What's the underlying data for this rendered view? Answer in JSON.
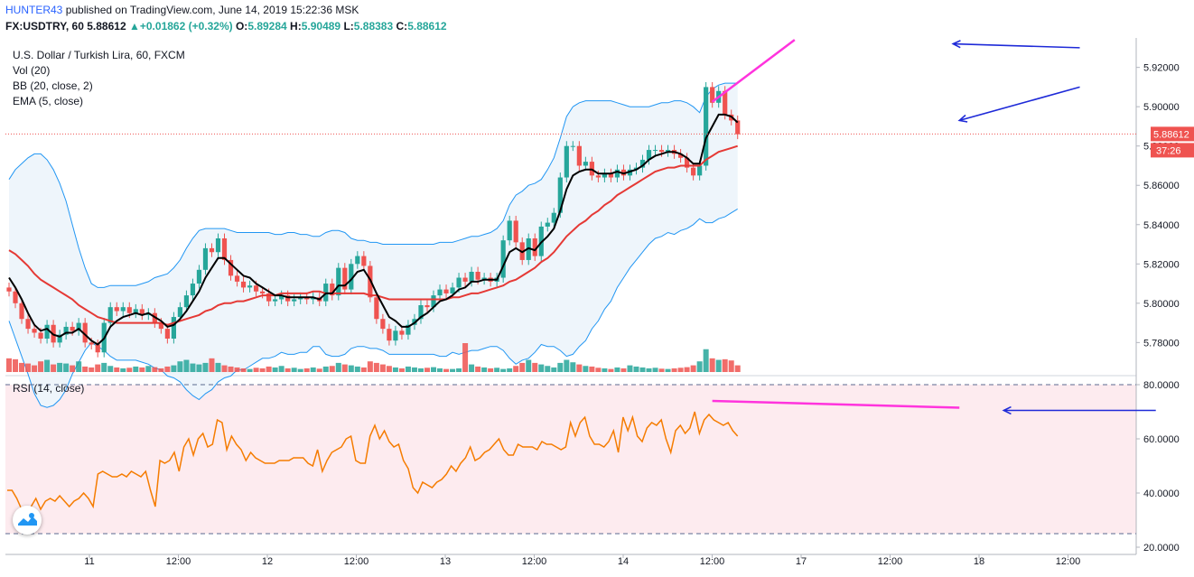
{
  "header": {
    "author": "HUNTER43",
    "published_text": "published on TradingView.com, June 14, 2019 15:22:36 MSK",
    "symbol": "FX:USDTRY, 60",
    "last": "5.88612",
    "change": "+0.01862 (+0.32%)",
    "o_label": "O:",
    "o_value": "5.89284",
    "h_label": "H:",
    "h_value": "5.90489",
    "l_label": "L:",
    "l_value": "5.88383",
    "c_label": "C:",
    "c_value": "5.88612"
  },
  "legend": {
    "title": "U.S. Dollar / Turkish Lira, 60, FXCM",
    "vol": "Vol (20)",
    "bb": "BB (20, close, 2)",
    "ema": "EMA (5, close)",
    "rsi": "RSI (14, close)"
  },
  "colors": {
    "up": "#26a69a",
    "down": "#ef5350",
    "ema": "#000000",
    "basis": "#e53935",
    "bands": "#2196f3",
    "rsi": "#f57c00",
    "trend": "#ff33dd",
    "arrow": "#1e2ad8",
    "rsi_fill": "#fdebef",
    "bb_fill": "#eef5fb"
  },
  "chart_data": [
    {
      "type": "candlestick",
      "title": "U.S. Dollar / Turkish Lira, 60, FXCM",
      "ylim": [
        5.765,
        5.935
      ],
      "yticks": [
        "5.92000",
        "5.90000",
        "5.88000",
        "5.86000",
        "5.84000",
        "5.82000",
        "5.80000",
        "5.78000"
      ],
      "ytick_values": [
        5.92,
        5.9,
        5.88,
        5.86,
        5.84,
        5.82,
        5.8,
        5.78
      ],
      "xticks": [
        "11",
        "12:00",
        "12",
        "12:00",
        "13",
        "12:00",
        "14",
        "12:00",
        "17",
        "12:00",
        "18",
        "12:00"
      ],
      "last_price_label": "5.88612",
      "countdown_label": "37:26",
      "last_price": 5.88612,
      "close": [
        5.806,
        5.8,
        5.792,
        5.787,
        5.785,
        5.782,
        5.789,
        5.78,
        5.784,
        5.788,
        5.786,
        5.79,
        5.78,
        5.779,
        5.775,
        5.79,
        5.798,
        5.796,
        5.798,
        5.795,
        5.797,
        5.794,
        5.795,
        5.79,
        5.787,
        5.782,
        5.793,
        5.798,
        5.804,
        5.81,
        5.817,
        5.828,
        5.826,
        5.833,
        5.822,
        5.814,
        5.811,
        5.808,
        5.809,
        5.806,
        5.805,
        5.801,
        5.802,
        5.804,
        5.801,
        5.802,
        5.803,
        5.802,
        5.803,
        5.801,
        5.81,
        5.804,
        5.818,
        5.807,
        5.82,
        5.824,
        5.819,
        5.803,
        5.792,
        5.787,
        5.781,
        5.786,
        5.784,
        5.789,
        5.792,
        5.799,
        5.798,
        5.804,
        5.807,
        5.805,
        5.808,
        5.813,
        5.811,
        5.816,
        5.812,
        5.813,
        5.811,
        5.813,
        5.832,
        5.842,
        5.831,
        5.822,
        5.833,
        5.824,
        5.839,
        5.841,
        5.846,
        5.864,
        5.88,
        5.88,
        5.87,
        5.872,
        5.865,
        5.864,
        5.866,
        5.864,
        5.868,
        5.865,
        5.868,
        5.869,
        5.873,
        5.878,
        5.878,
        5.877,
        5.878,
        5.876,
        5.874,
        5.869,
        5.865,
        5.87,
        5.91,
        5.902,
        5.908,
        5.896,
        5.893,
        5.886
      ],
      "ema": [
        5.813,
        5.808,
        5.802,
        5.795,
        5.789,
        5.786,
        5.787,
        5.784,
        5.783,
        5.785,
        5.785,
        5.787,
        5.784,
        5.781,
        5.779,
        5.782,
        5.788,
        5.791,
        5.793,
        5.794,
        5.795,
        5.794,
        5.795,
        5.793,
        5.791,
        5.788,
        5.789,
        5.792,
        5.796,
        5.801,
        5.806,
        5.813,
        5.818,
        5.823,
        5.823,
        5.82,
        5.817,
        5.814,
        5.813,
        5.81,
        5.808,
        5.806,
        5.804,
        5.804,
        5.803,
        5.803,
        5.803,
        5.803,
        5.803,
        5.802,
        5.805,
        5.805,
        5.809,
        5.809,
        5.812,
        5.816,
        5.817,
        5.812,
        5.805,
        5.799,
        5.793,
        5.791,
        5.788,
        5.788,
        5.79,
        5.793,
        5.795,
        5.798,
        5.801,
        5.802,
        5.804,
        5.807,
        5.808,
        5.811,
        5.811,
        5.812,
        5.812,
        5.812,
        5.819,
        5.826,
        5.828,
        5.826,
        5.828,
        5.827,
        5.831,
        5.834,
        5.838,
        5.847,
        5.858,
        5.865,
        5.867,
        5.868,
        5.868,
        5.866,
        5.866,
        5.866,
        5.867,
        5.866,
        5.867,
        5.868,
        5.87,
        5.873,
        5.875,
        5.876,
        5.877,
        5.877,
        5.876,
        5.874,
        5.871,
        5.871,
        5.884,
        5.89,
        5.896,
        5.896,
        5.895,
        5.892
      ],
      "bb_basis": [
        5.827,
        5.825,
        5.822,
        5.819,
        5.815,
        5.812,
        5.81,
        5.808,
        5.806,
        5.804,
        5.802,
        5.799,
        5.797,
        5.795,
        5.793,
        5.792,
        5.791,
        5.79,
        5.79,
        5.79,
        5.79,
        5.79,
        5.79,
        5.79,
        5.79,
        5.789,
        5.79,
        5.791,
        5.792,
        5.793,
        5.794,
        5.796,
        5.797,
        5.799,
        5.8,
        5.8,
        5.801,
        5.801,
        5.802,
        5.803,
        5.804,
        5.804,
        5.804,
        5.805,
        5.805,
        5.805,
        5.805,
        5.805,
        5.806,
        5.806,
        5.805,
        5.805,
        5.805,
        5.805,
        5.805,
        5.805,
        5.805,
        5.804,
        5.804,
        5.803,
        5.802,
        5.802,
        5.802,
        5.802,
        5.802,
        5.802,
        5.802,
        5.802,
        5.802,
        5.802,
        5.803,
        5.803,
        5.804,
        5.805,
        5.805,
        5.806,
        5.807,
        5.808,
        5.809,
        5.811,
        5.812,
        5.814,
        5.816,
        5.818,
        5.821,
        5.823,
        5.826,
        5.83,
        5.834,
        5.837,
        5.84,
        5.842,
        5.845,
        5.847,
        5.85,
        5.852,
        5.855,
        5.857,
        5.859,
        5.861,
        5.863,
        5.865,
        5.867,
        5.868,
        5.869,
        5.869,
        5.87,
        5.87,
        5.87,
        5.87,
        5.873,
        5.875,
        5.877,
        5.878,
        5.879,
        5.88
      ],
      "bb_upper": [
        5.863,
        5.868,
        5.871,
        5.874,
        5.876,
        5.876,
        5.873,
        5.868,
        5.861,
        5.852,
        5.84,
        5.828,
        5.818,
        5.81,
        5.808,
        5.808,
        5.809,
        5.809,
        5.809,
        5.809,
        5.809,
        5.81,
        5.811,
        5.813,
        5.814,
        5.815,
        5.818,
        5.822,
        5.828,
        5.833,
        5.837,
        5.838,
        5.838,
        5.838,
        5.838,
        5.837,
        5.836,
        5.836,
        5.836,
        5.836,
        5.836,
        5.836,
        5.835,
        5.835,
        5.836,
        5.836,
        5.835,
        5.835,
        5.834,
        5.834,
        5.836,
        5.837,
        5.837,
        5.836,
        5.833,
        5.832,
        5.832,
        5.831,
        5.831,
        5.83,
        5.83,
        5.83,
        5.83,
        5.83,
        5.83,
        5.83,
        5.83,
        5.83,
        5.831,
        5.831,
        5.831,
        5.832,
        5.833,
        5.834,
        5.834,
        5.835,
        5.836,
        5.838,
        5.842,
        5.85,
        5.855,
        5.857,
        5.86,
        5.861,
        5.863,
        5.868,
        5.874,
        5.884,
        5.895,
        5.9,
        5.902,
        5.903,
        5.903,
        5.903,
        5.903,
        5.903,
        5.902,
        5.901,
        5.9,
        5.9,
        5.9,
        5.9,
        5.901,
        5.902,
        5.902,
        5.903,
        5.903,
        5.902,
        5.9,
        5.897,
        5.905,
        5.909,
        5.911,
        5.912,
        5.912,
        5.912
      ],
      "bb_lower": [
        5.791,
        5.782,
        5.773,
        5.764,
        5.754,
        5.748,
        5.747,
        5.748,
        5.751,
        5.756,
        5.764,
        5.77,
        5.776,
        5.78,
        5.778,
        5.776,
        5.773,
        5.771,
        5.771,
        5.771,
        5.771,
        5.77,
        5.769,
        5.767,
        5.766,
        5.763,
        5.762,
        5.76,
        5.756,
        5.753,
        5.751,
        5.754,
        5.756,
        5.76,
        5.762,
        5.763,
        5.766,
        5.766,
        5.768,
        5.77,
        5.772,
        5.772,
        5.773,
        5.775,
        5.774,
        5.774,
        5.775,
        5.775,
        5.778,
        5.778,
        5.774,
        5.773,
        5.773,
        5.774,
        5.777,
        5.778,
        5.778,
        5.777,
        5.777,
        5.776,
        5.774,
        5.774,
        5.774,
        5.774,
        5.774,
        5.774,
        5.774,
        5.774,
        5.773,
        5.773,
        5.775,
        5.774,
        5.775,
        5.776,
        5.776,
        5.777,
        5.778,
        5.778,
        5.776,
        5.772,
        5.769,
        5.771,
        5.772,
        5.775,
        5.779,
        5.778,
        5.778,
        5.776,
        5.773,
        5.774,
        5.778,
        5.781,
        5.787,
        5.791,
        5.797,
        5.801,
        5.808,
        5.813,
        5.818,
        5.822,
        5.826,
        5.83,
        5.833,
        5.834,
        5.836,
        5.835,
        5.837,
        5.838,
        5.84,
        5.843,
        5.841,
        5.841,
        5.843,
        5.844,
        5.846,
        5.848
      ],
      "volume": [
        45,
        42,
        30,
        28,
        22,
        35,
        40,
        25,
        30,
        28,
        22,
        35,
        18,
        15,
        25,
        30,
        20,
        15,
        12,
        14,
        18,
        15,
        20,
        16,
        12,
        18,
        22,
        35,
        40,
        28,
        25,
        30,
        45,
        30,
        22,
        18,
        15,
        12,
        10,
        14,
        12,
        18,
        15,
        20,
        12,
        14,
        10,
        12,
        15,
        11,
        18,
        20,
        30,
        25,
        22,
        18,
        15,
        35,
        30,
        25,
        20,
        15,
        12,
        18,
        15,
        12,
        14,
        16,
        12,
        10,
        10,
        12,
        95,
        25,
        18,
        15,
        12,
        14,
        10,
        12,
        20,
        30,
        40,
        30,
        25,
        20,
        15,
        30,
        40,
        32,
        25,
        20,
        18,
        14,
        12,
        10,
        15,
        12,
        22,
        18,
        15,
        12,
        14,
        11,
        10,
        12,
        14,
        16,
        22,
        35,
        75,
        45,
        40,
        42,
        38,
        22
      ],
      "annotations": {
        "price_trendline": [
          [
            111,
            5.9025
          ],
          [
            124,
            5.934
          ]
        ],
        "price_arrow_top": {
          "from": [
            169,
            5.93
          ],
          "to": [
            149,
            5.932
          ]
        },
        "price_arrow_mid": {
          "from": [
            169,
            5.91
          ],
          "to": [
            150,
            5.893
          ]
        }
      }
    },
    {
      "type": "line",
      "title": "RSI (14, close)",
      "ylim": [
        20,
        82
      ],
      "yticks": [
        "80.0000",
        "60.0000",
        "40.0000",
        "20.0000"
      ],
      "ytick_values": [
        80,
        60,
        40,
        20
      ],
      "bands": [
        80,
        25
      ],
      "values": [
        41,
        41,
        38,
        34,
        33,
        35,
        38,
        34,
        37,
        38,
        37,
        39,
        37,
        35,
        37,
        38,
        40,
        38,
        35,
        47,
        48,
        47,
        46,
        46,
        47,
        46,
        48,
        47,
        46,
        48,
        41,
        35,
        52,
        51,
        52,
        55,
        48,
        57,
        60,
        54,
        60,
        62,
        57,
        58,
        67,
        66,
        56,
        61,
        58,
        56,
        52,
        55,
        53,
        52,
        51,
        51,
        51,
        52,
        52,
        52,
        53,
        53,
        53,
        51,
        50,
        56,
        48,
        52,
        55,
        56,
        57,
        60,
        61,
        52,
        51,
        51,
        61,
        65,
        60,
        63,
        59,
        57,
        58,
        52,
        49,
        42,
        40,
        44,
        43,
        42,
        44,
        45,
        47,
        50,
        48,
        51,
        53,
        57,
        52,
        53,
        55,
        56,
        58,
        60,
        56,
        54,
        54,
        58,
        57,
        57,
        57,
        56,
        59,
        58,
        58,
        57,
        56,
        57,
        66,
        61,
        66,
        68,
        61,
        58,
        58,
        57,
        59,
        63,
        55,
        68,
        63,
        68,
        61,
        59,
        64,
        66,
        65,
        67,
        60,
        55,
        63,
        65,
        62,
        64,
        70,
        62,
        67,
        69,
        67,
        66,
        65,
        66,
        63,
        61
      ],
      "annotations": {
        "rsi_trendline": [
          [
            111,
            74
          ],
          [
            150,
            71.5
          ]
        ],
        "rsi_arrow": {
          "from": [
            181,
            70.5
          ],
          "to": [
            157,
            70.5
          ]
        }
      }
    }
  ]
}
